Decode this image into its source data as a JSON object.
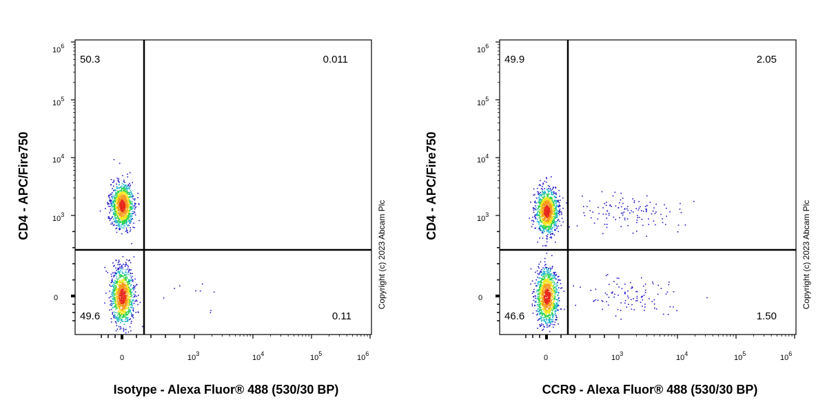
{
  "copyright": "Copyright (c) 2023 Abcam Plc",
  "colors": {
    "low": "#1a12c8",
    "mid": "#2bd14a",
    "high": "#f4e61e",
    "peak": "#e8291c",
    "gate": "#000000"
  },
  "chart_data": [
    {
      "type": "scatter",
      "xlabel": "Isotype - Alexa Fluor® 488 (530/30 BP)",
      "ylabel": "CD4 - APC/Fire750",
      "x_scale": "biexponential",
      "y_scale": "biexponential",
      "x_ticks": [
        "0",
        "10^3",
        "10^4",
        "10^5",
        "10^6"
      ],
      "y_ticks": [
        "10^6",
        "10^5",
        "10^4",
        "10^3",
        "0"
      ],
      "quadrant_percentages": {
        "upper_left": "50.3",
        "upper_right": "0.011",
        "lower_left": "49.6",
        "lower_right": "0.11"
      },
      "populations": [
        {
          "quadrant": "upper_left",
          "x_center": 0,
          "y_center": 1500,
          "events": 1200
        },
        {
          "quadrant": "lower_left",
          "x_center": 0,
          "y_center": 0,
          "events": 1200
        },
        {
          "quadrant": "lower_right",
          "x_center": 1000,
          "y_center": 0,
          "events": 10
        }
      ]
    },
    {
      "type": "scatter",
      "xlabel": "CCR9 - Alexa Fluor® 488 (530/30 BP)",
      "ylabel": "CD4 - APC/Fire750",
      "x_scale": "biexponential",
      "y_scale": "biexponential",
      "x_ticks": [
        "0",
        "10^3",
        "10^4",
        "10^5",
        "10^6"
      ],
      "y_ticks": [
        "10^6",
        "10^5",
        "10^4",
        "10^3",
        "0"
      ],
      "quadrant_percentages": {
        "upper_left": "49.9",
        "upper_right": "2.05",
        "lower_left": "46.6",
        "lower_right": "1.50"
      },
      "populations": [
        {
          "quadrant": "upper_left",
          "x_center": 0,
          "y_center": 1200,
          "events": 1200
        },
        {
          "quadrant": "lower_left",
          "x_center": 0,
          "y_center": 0,
          "events": 1200
        },
        {
          "quadrant": "upper_right",
          "x_center": 1500,
          "y_center": 1200,
          "events": 120
        },
        {
          "quadrant": "lower_right",
          "x_center": 1500,
          "y_center": 0,
          "events": 100
        }
      ]
    }
  ]
}
